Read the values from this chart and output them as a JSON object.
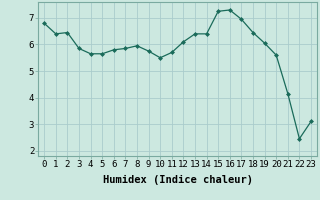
{
  "xlabel": "Humidex (Indice chaleur)",
  "x": [
    0,
    1,
    2,
    3,
    4,
    5,
    6,
    7,
    8,
    9,
    10,
    11,
    12,
    13,
    14,
    15,
    16,
    17,
    18,
    19,
    20,
    21,
    22,
    23
  ],
  "y": [
    6.8,
    6.4,
    6.45,
    5.85,
    5.65,
    5.65,
    5.8,
    5.85,
    5.95,
    5.75,
    5.5,
    5.7,
    6.1,
    6.4,
    6.4,
    7.25,
    7.3,
    6.95,
    6.45,
    6.05,
    5.6,
    4.15,
    2.45,
    3.1
  ],
  "line_color": "#1a6b5a",
  "marker": "D",
  "marker_size": 2.0,
  "bg_color": "#cce8e0",
  "grid_color": "#aacccc",
  "ylim": [
    1.8,
    7.6
  ],
  "xlim": [
    -0.5,
    23.5
  ],
  "yticks": [
    2,
    3,
    4,
    5,
    6,
    7
  ],
  "xticks": [
    0,
    1,
    2,
    3,
    4,
    5,
    6,
    7,
    8,
    9,
    10,
    11,
    12,
    13,
    14,
    15,
    16,
    17,
    18,
    19,
    20,
    21,
    22,
    23
  ],
  "tick_labelsize": 6.5,
  "xlabel_fontsize": 7.5,
  "xlabel_fontweight": "bold"
}
